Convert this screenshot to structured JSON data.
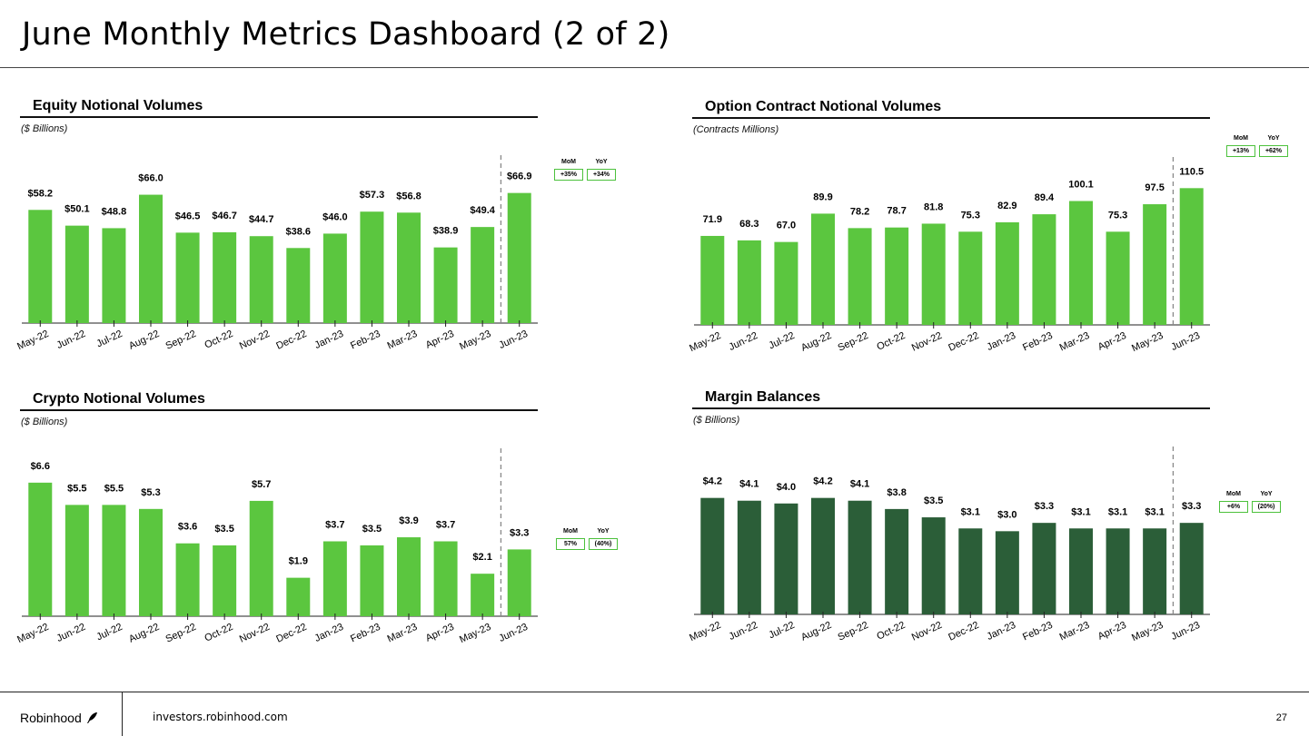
{
  "page": {
    "title": "June Monthly Metrics Dashboard (2 of 2)",
    "footer_brand": "Robinhood",
    "footer_url": "investors.robinhood.com",
    "page_number": "27"
  },
  "colors": {
    "bar_light": "#5bc63f",
    "bar_dark": "#2b5e38",
    "badge_border": "#4cc13c"
  },
  "chart_data": [
    {
      "id": "equity",
      "type": "bar",
      "title": "Equity Notional Volumes",
      "subtitle": "($ Billions)",
      "categories": [
        "May-22",
        "Jun-22",
        "Jul-22",
        "Aug-22",
        "Sep-22",
        "Oct-22",
        "Nov-22",
        "Dec-22",
        "Jan-23",
        "Feb-23",
        "Mar-23",
        "Apr-23",
        "May-23",
        "Jun-23"
      ],
      "values": [
        58.2,
        50.1,
        48.8,
        66.0,
        46.5,
        46.7,
        44.7,
        38.6,
        46.0,
        57.3,
        56.8,
        38.9,
        49.4,
        66.9
      ],
      "labels": [
        "$58.2",
        "$50.1",
        "$48.8",
        "$66.0",
        "$46.5",
        "$46.7",
        "$44.7",
        "$38.6",
        "$46.0",
        "$57.3",
        "$56.8",
        "$38.9",
        "$49.4",
        "$66.9"
      ],
      "ylim": [
        0,
        77
      ],
      "color": "#5bc63f",
      "mom_label": "MoM",
      "mom_value": "+35%",
      "yoy_label": "YoY",
      "yoy_value": "+34%"
    },
    {
      "id": "options",
      "type": "bar",
      "title": "Option Contract Notional Volumes",
      "subtitle": "(Contracts Millions)",
      "categories": [
        "May-22",
        "Jun-22",
        "Jul-22",
        "Aug-22",
        "Sep-22",
        "Oct-22",
        "Nov-22",
        "Dec-22",
        "Jan-23",
        "Feb-23",
        "Mar-23",
        "Apr-23",
        "May-23",
        "Jun-23"
      ],
      "values": [
        71.9,
        68.3,
        67.0,
        89.9,
        78.2,
        78.7,
        81.8,
        75.3,
        82.9,
        89.4,
        100.1,
        75.3,
        97.5,
        110.5
      ],
      "labels": [
        "71.9",
        "68.3",
        "67.0",
        "89.9",
        "78.2",
        "78.7",
        "81.8",
        "75.3",
        "82.9",
        "89.4",
        "100.1",
        "75.3",
        "97.5",
        "110.5"
      ],
      "ylim": [
        0,
        121
      ],
      "color": "#5bc63f",
      "mom_label": "MoM",
      "mom_value": "+13%",
      "yoy_label": "YoY",
      "yoy_value": "+62%"
    },
    {
      "id": "crypto",
      "type": "bar",
      "title": "Crypto Notional Volumes",
      "subtitle": "($ Billions)",
      "categories": [
        "May-22",
        "Jun-22",
        "Jul-22",
        "Aug-22",
        "Sep-22",
        "Oct-22",
        "Nov-22",
        "Dec-22",
        "Jan-23",
        "Feb-23",
        "Mar-23",
        "Apr-23",
        "May-23",
        "Jun-23"
      ],
      "values": [
        6.6,
        5.5,
        5.5,
        5.3,
        3.6,
        3.5,
        5.7,
        1.9,
        3.7,
        3.5,
        3.9,
        3.7,
        2.1,
        3.3
      ],
      "labels": [
        "$6.6",
        "$5.5",
        "$5.5",
        "$5.3",
        "$3.6",
        "$3.5",
        "$5.7",
        "$1.9",
        "$3.7",
        "$3.5",
        "$3.9",
        "$3.7",
        "$2.1",
        "$3.3"
      ],
      "ylim": [
        0,
        7.4
      ],
      "color": "#5bc63f",
      "mom_label": "MoM",
      "mom_value": "57%",
      "yoy_label": "YoY",
      "yoy_value": "(40%)"
    },
    {
      "id": "margin",
      "type": "bar",
      "title": "Margin Balances",
      "subtitle": "($ Billions)",
      "categories": [
        "May-22",
        "Jun-22",
        "Jul-22",
        "Aug-22",
        "Sep-22",
        "Oct-22",
        "Nov-22",
        "Dec-22",
        "Jan-23",
        "Feb-23",
        "Mar-23",
        "Apr-23",
        "May-23",
        "Jun-23"
      ],
      "values": [
        4.2,
        4.1,
        4.0,
        4.2,
        4.1,
        3.8,
        3.5,
        3.1,
        3.0,
        3.3,
        3.1,
        3.1,
        3.1,
        3.3
      ],
      "labels": [
        "$4.2",
        "$4.1",
        "$4.0",
        "$4.2",
        "$4.1",
        "$3.8",
        "$3.5",
        "$3.1",
        "$3.0",
        "$3.3",
        "$3.1",
        "$3.1",
        "$3.1",
        "$3.3"
      ],
      "ylim": [
        0,
        5.4
      ],
      "color": "#2b5e38",
      "mom_label": "MoM",
      "mom_value": "+6%",
      "yoy_label": "YoY",
      "yoy_value": "(20%)"
    }
  ]
}
